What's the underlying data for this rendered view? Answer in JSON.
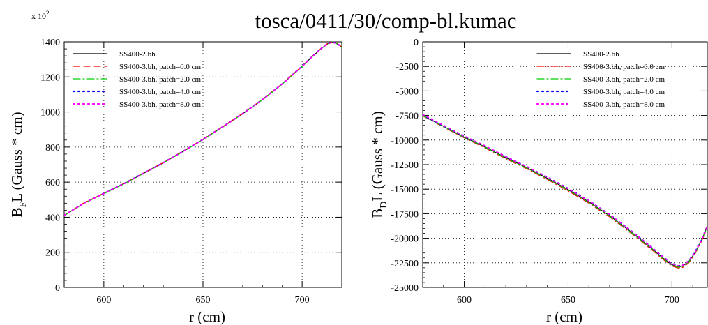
{
  "figure": {
    "title": "tosca/0411/30/comp-bl.kumac"
  },
  "chart_data": [
    {
      "type": "line",
      "xlabel": "r (cm)",
      "ylabel_main": "B",
      "ylabel_sub": "F",
      "ylabel_rest": "L (Gauss * cm)",
      "y_exponent_label": "x 10",
      "y_exponent_power": "2",
      "xlim": [
        580,
        720
      ],
      "ylim": [
        0,
        1400
      ],
      "xticks": [
        600,
        650,
        700
      ],
      "yticks": [
        0,
        200,
        400,
        600,
        800,
        1000,
        1200,
        1400
      ],
      "grid": true,
      "legend_position": "top-left",
      "x": [
        580,
        590,
        600,
        610,
        620,
        630,
        640,
        650,
        660,
        670,
        680,
        690,
        700,
        705,
        710,
        713,
        715,
        717,
        719,
        720
      ],
      "series": [
        {
          "name": "SS400-2.bh",
          "color": "#000000",
          "dash": "solid",
          "values": [
            410,
            480,
            535,
            590,
            650,
            710,
            775,
            843,
            915,
            990,
            1070,
            1160,
            1260,
            1315,
            1365,
            1390,
            1397,
            1393,
            1378,
            1368
          ]
        },
        {
          "name": "SS400-3.bh, patch=0.0 cm",
          "color": "#ff0000",
          "dash": "dashed",
          "values": [
            412,
            482,
            537,
            592,
            652,
            712,
            777,
            845,
            917,
            992,
            1072,
            1162,
            1262,
            1317,
            1367,
            1392,
            1399,
            1395,
            1380,
            1370
          ]
        },
        {
          "name": "SS400-3.bh, patch=2.0 cm",
          "color": "#00cc00",
          "dash": "dashdot",
          "values": [
            409,
            479,
            534,
            589,
            649,
            709,
            774,
            842,
            914,
            989,
            1069,
            1159,
            1259,
            1314,
            1364,
            1389,
            1396,
            1392,
            1377,
            1367
          ]
        },
        {
          "name": "SS400-3.bh, patch=4.0 cm",
          "color": "#0000ff",
          "dash": "dotted",
          "values": [
            410,
            481,
            536,
            591,
            651,
            711,
            776,
            844,
            916,
            991,
            1071,
            1161,
            1261,
            1316,
            1366,
            1391,
            1398,
            1394,
            1379,
            1369
          ]
        },
        {
          "name": "SS400-3.bh, patch=8.0 cm",
          "color": "#ff00ff",
          "dash": "dotted",
          "values": [
            411,
            480,
            535,
            590,
            650,
            710,
            775,
            843,
            915,
            990,
            1070,
            1160,
            1260,
            1315,
            1365,
            1390,
            1397,
            1393,
            1378,
            1368
          ]
        }
      ]
    },
    {
      "type": "line",
      "xlabel": "r (cm)",
      "ylabel_main": "B",
      "ylabel_sub": "D",
      "ylabel_rest": "L (Gauss * cm)",
      "xlim": [
        580,
        717
      ],
      "ylim": [
        -25000,
        0
      ],
      "xticks": [
        600,
        650,
        700
      ],
      "yticks": [
        0,
        -2500,
        -5000,
        -7500,
        -10000,
        -12500,
        -15000,
        -17500,
        -20000,
        -22500,
        -25000
      ],
      "grid": true,
      "legend_position": "top-right",
      "x": [
        580,
        590,
        600,
        610,
        620,
        630,
        640,
        650,
        660,
        670,
        680,
        690,
        695,
        700,
        703,
        705,
        708,
        711,
        714,
        717
      ],
      "series": [
        {
          "name": "SS400-2.bh",
          "color": "#000000",
          "dash": "solid",
          "values": [
            -7500,
            -8600,
            -9700,
            -10700,
            -11800,
            -12800,
            -13900,
            -15050,
            -16300,
            -17700,
            -19300,
            -21000,
            -21900,
            -22700,
            -22900,
            -22850,
            -22400,
            -21500,
            -20300,
            -18800
          ]
        },
        {
          "name": "SS400-3.bh, patch=0.0 cm",
          "color": "#ff0000",
          "dash": "dashdot",
          "values": [
            -7550,
            -8680,
            -9780,
            -10800,
            -11900,
            -12920,
            -14020,
            -15180,
            -16430,
            -17830,
            -19430,
            -21130,
            -22030,
            -22830,
            -23030,
            -22980,
            -22530,
            -21630,
            -20430,
            -18930
          ]
        },
        {
          "name": "SS400-3.bh, patch=2.0 cm",
          "color": "#00cc00",
          "dash": "dashdot",
          "values": [
            -7520,
            -8630,
            -9730,
            -10740,
            -11840,
            -12850,
            -13950,
            -15100,
            -16350,
            -17750,
            -19350,
            -21050,
            -21950,
            -22750,
            -22950,
            -22900,
            -22450,
            -21550,
            -20350,
            -18850
          ]
        },
        {
          "name": "SS400-3.bh, patch=4.0 cm",
          "color": "#0000ff",
          "dash": "dotted",
          "values": [
            -7460,
            -8540,
            -9620,
            -10610,
            -11700,
            -12690,
            -13780,
            -14930,
            -16180,
            -17580,
            -19180,
            -20880,
            -21780,
            -22580,
            -22800,
            -22760,
            -22320,
            -21430,
            -20240,
            -18750
          ]
        },
        {
          "name": "SS400-3.bh, patch=8.0 cm",
          "color": "#ff00ff",
          "dash": "dotted",
          "values": [
            -7400,
            -8500,
            -9600,
            -10600,
            -11700,
            -12700,
            -13800,
            -14950,
            -16200,
            -17600,
            -19200,
            -20900,
            -21800,
            -22600,
            -22820,
            -22780,
            -22340,
            -21450,
            -20260,
            -18770
          ]
        }
      ]
    }
  ]
}
